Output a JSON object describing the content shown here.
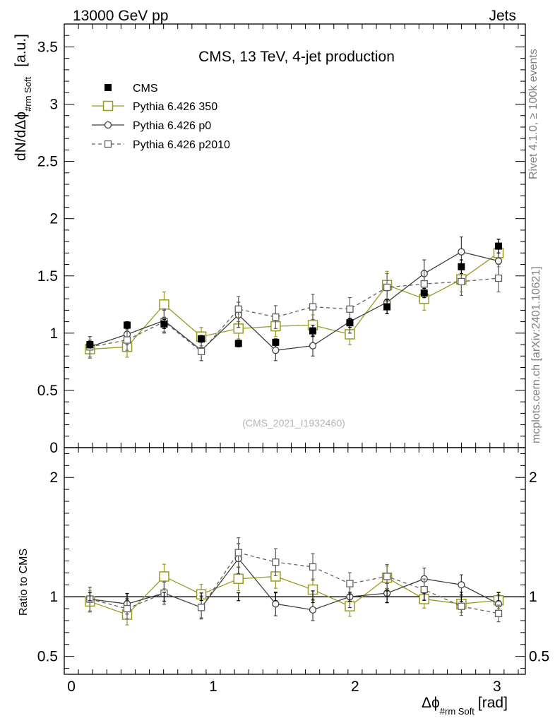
{
  "header": {
    "left": "13000 GeV pp",
    "right": "Jets"
  },
  "side_labels": {
    "rivet": "Rivet 4.1.0, ≥ 100k events",
    "mcplots": "mcplots.cern.ch [arXiv:2401.10621]"
  },
  "chart_data": {
    "type": "line",
    "title": "CMS, 13 TeV, 4-jet production",
    "watermark": "(CMS_2021_I1932460)",
    "xlabel": "Δϕ",
    "xlabel_sub": "#rm Soft",
    "xlabel_unit": "[rad]",
    "ylabel": "dN/dΔϕ",
    "ylabel_sub": "#rm Soft",
    "ylabel_unit": "[a.u.]",
    "ratio_ylabel": "Ratio to CMS",
    "xlim": [
      -0.05,
      3.2
    ],
    "ylim": [
      0,
      3.7
    ],
    "ratio_ylim": [
      0.35,
      2.25
    ],
    "x_ticks": [
      "0",
      "1",
      "2",
      "3"
    ],
    "y_ticks": [
      "0",
      "0.5",
      "1",
      "1.5",
      "2",
      "2.5",
      "3",
      "3.5"
    ],
    "ratio_ticks": [
      "0.5",
      "1",
      "2"
    ],
    "x": [
      0.131,
      0.393,
      0.654,
      0.916,
      1.178,
      1.44,
      1.702,
      1.963,
      2.225,
      2.487,
      2.749,
      3.011
    ],
    "series": [
      {
        "name": "CMS",
        "color": "#000000",
        "marker": "filled-square",
        "line": "none",
        "values": [
          0.9,
          1.07,
          1.08,
          0.95,
          0.91,
          0.92,
          1.02,
          1.09,
          1.23,
          1.35,
          1.58,
          1.76
        ],
        "errors": [
          0.03,
          0.03,
          0.04,
          0.03,
          0.03,
          0.03,
          0.05,
          0.04,
          0.06,
          0.04,
          0.06,
          0.06
        ],
        "ratio": [
          1,
          1,
          1,
          1,
          1,
          1,
          1,
          1,
          1,
          1,
          1,
          1
        ]
      },
      {
        "name": "Pythia 6.426 350",
        "color": "#9a9a1f",
        "marker": "open-square",
        "line": "solid",
        "values": [
          0.86,
          0.88,
          1.25,
          0.97,
          1.04,
          1.06,
          1.07,
          0.99,
          1.42,
          1.3,
          1.47,
          1.7
        ],
        "errors": [
          0.08,
          0.09,
          0.11,
          0.08,
          0.09,
          0.09,
          0.09,
          0.09,
          0.12,
          0.1,
          0.11,
          0.12
        ],
        "ratio": [
          0.96,
          0.85,
          1.17,
          1.02,
          1.15,
          1.17,
          1.06,
          0.92,
          1.16,
          0.98,
          0.94,
          0.97
        ]
      },
      {
        "name": "Pythia 6.426 p0",
        "color": "#404040",
        "marker": "open-circle",
        "line": "solid",
        "values": [
          0.88,
          0.99,
          1.11,
          0.85,
          1.16,
          0.85,
          0.89,
          1.1,
          1.27,
          1.52,
          1.71,
          1.63
        ],
        "errors": [
          0.09,
          0.09,
          0.1,
          0.09,
          0.11,
          0.09,
          0.09,
          0.1,
          0.1,
          0.12,
          0.13,
          0.13
        ],
        "ratio": [
          0.98,
          0.94,
          1.03,
          0.91,
          1.32,
          0.94,
          0.89,
          1.0,
          1.03,
          1.15,
          1.1,
          0.94
        ]
      },
      {
        "name": "Pythia 6.426 p2010",
        "color": "#606060",
        "marker": "open-square-small",
        "line": "dashed",
        "values": [
          0.88,
          0.94,
          1.1,
          0.84,
          1.21,
          1.14,
          1.23,
          1.21,
          1.4,
          1.43,
          1.45,
          1.48
        ],
        "errors": [
          0.09,
          0.09,
          0.1,
          0.08,
          0.11,
          0.1,
          0.11,
          0.1,
          0.12,
          0.12,
          0.12,
          0.12
        ],
        "ratio": [
          0.98,
          0.9,
          1.03,
          0.91,
          1.37,
          1.29,
          1.25,
          1.11,
          1.17,
          1.06,
          0.92,
          0.86
        ]
      }
    ]
  }
}
